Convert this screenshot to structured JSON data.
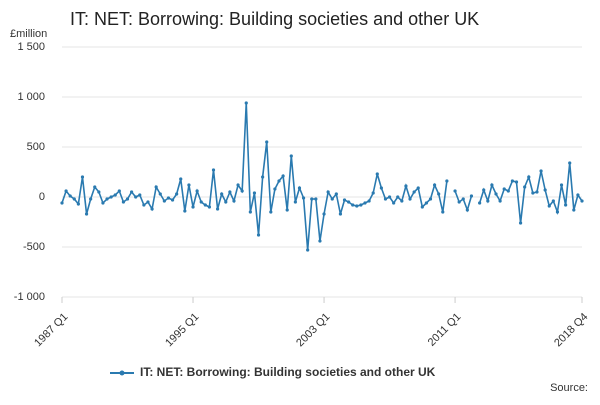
{
  "chart_data": {
    "type": "line",
    "title": "IT: NET: Borrowing: Building societies and other UK",
    "y_label": "£million",
    "source": "Source:",
    "categories": [
      "1987 Q1",
      null,
      null,
      null,
      null,
      null,
      null,
      null,
      null,
      null,
      null,
      null,
      null,
      null,
      null,
      null,
      null,
      null,
      null,
      null,
      null,
      null,
      null,
      null,
      null,
      null,
      null,
      null,
      null,
      null,
      null,
      null,
      "1995 Q1",
      null,
      null,
      null,
      null,
      null,
      null,
      null,
      null,
      null,
      null,
      null,
      null,
      null,
      null,
      null,
      null,
      null,
      null,
      null,
      null,
      null,
      null,
      null,
      null,
      null,
      null,
      null,
      null,
      null,
      null,
      null,
      "2003 Q1",
      null,
      null,
      null,
      null,
      null,
      null,
      null,
      null,
      null,
      null,
      null,
      null,
      null,
      null,
      null,
      null,
      null,
      null,
      null,
      null,
      null,
      null,
      null,
      null,
      null,
      null,
      null,
      null,
      null,
      null,
      null,
      "2011 Q1",
      null,
      null,
      null,
      null,
      null,
      null,
      null,
      null,
      null,
      null,
      null,
      null,
      null,
      null,
      null,
      null,
      null,
      null,
      null,
      null,
      null,
      null,
      null,
      null,
      null,
      null,
      null,
      null,
      null,
      null,
      "2018 Q4"
    ],
    "series": [
      {
        "name": "IT: NET: Borrowing: Building societies and other UK",
        "color": "#2a7ab0",
        "values": [
          -60,
          60,
          10,
          -20,
          -70,
          200,
          -170,
          -20,
          100,
          50,
          -60,
          -20,
          0,
          20,
          60,
          -50,
          -20,
          50,
          0,
          20,
          -80,
          -50,
          -120,
          100,
          30,
          -40,
          -10,
          -30,
          30,
          180,
          -140,
          120,
          -100,
          60,
          -50,
          -80,
          -100,
          270,
          -120,
          30,
          -50,
          50,
          -40,
          120,
          60,
          940,
          -150,
          40,
          -380,
          200,
          550,
          -150,
          80,
          160,
          210,
          -130,
          410,
          -50,
          90,
          -10,
          -530,
          -20,
          -20,
          -440,
          -170,
          50,
          -20,
          30,
          -170,
          -30,
          -50,
          -80,
          -90,
          -80,
          -60,
          -40,
          40,
          230,
          90,
          -20,
          0,
          -60,
          0,
          -40,
          110,
          -20,
          50,
          90,
          -100,
          -60,
          -20,
          120,
          30,
          -150,
          160,
          null,
          60,
          -50,
          -20,
          -130,
          10,
          null,
          -60,
          70,
          -40,
          120,
          30,
          -40,
          80,
          60,
          160,
          150,
          -260,
          100,
          200,
          40,
          50,
          260,
          70,
          -90,
          -40,
          -150,
          120,
          -80,
          340,
          -130,
          20,
          -40
        ]
      }
    ],
    "ylim": [
      -1000,
      1500
    ],
    "yticks": [
      {
        "value": -1000,
        "label": "-1 000"
      },
      -500,
      0,
      500,
      {
        "value": 1000,
        "label": "1 000"
      },
      {
        "value": 1500,
        "label": "1 500"
      }
    ],
    "grid": true
  }
}
